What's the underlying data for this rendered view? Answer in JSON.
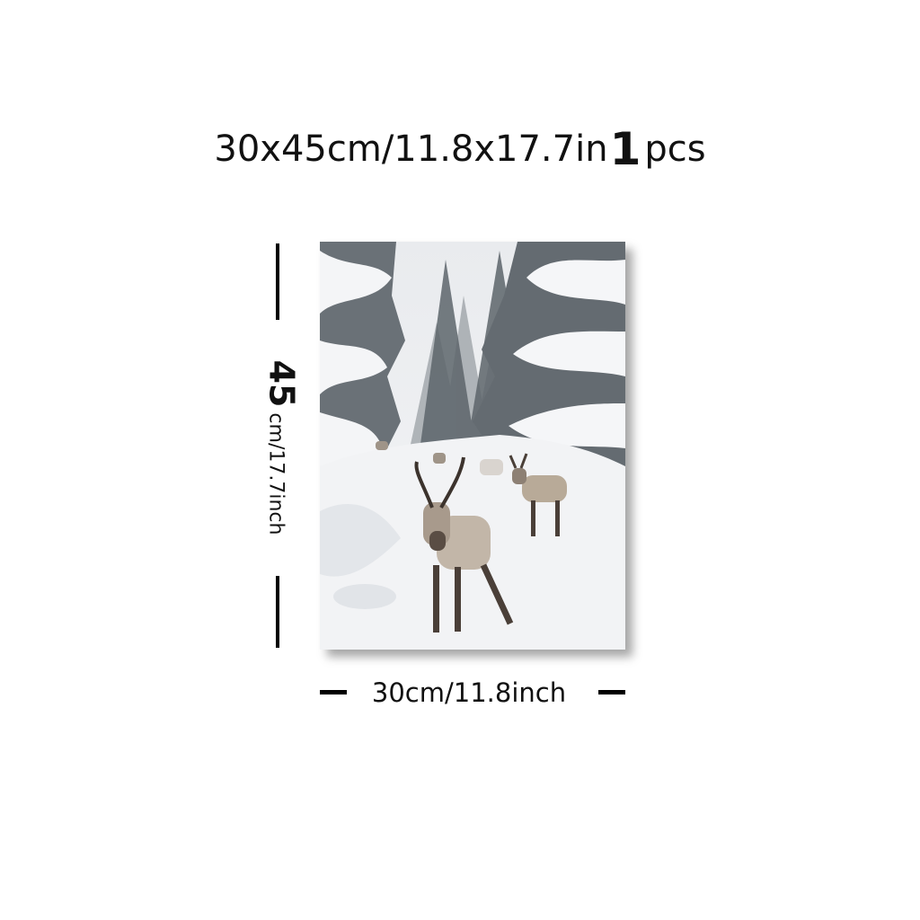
{
  "header": {
    "size_text": "30x45cm/11.8x17.7in",
    "quantity": "1",
    "unit": "pcs"
  },
  "height_label": {
    "number": "45",
    "unit_text": "cm/17.7inch"
  },
  "width_label": {
    "text": "30cm/11.8inch"
  },
  "artwork": {
    "subject": "snowy-forest-reindeer-photo",
    "colors": {
      "snow": "#f2f3f5",
      "tree_dark": "#5b6268",
      "reindeer_fur": "#b9ada0",
      "reindeer_dark": "#4a3f38"
    }
  }
}
